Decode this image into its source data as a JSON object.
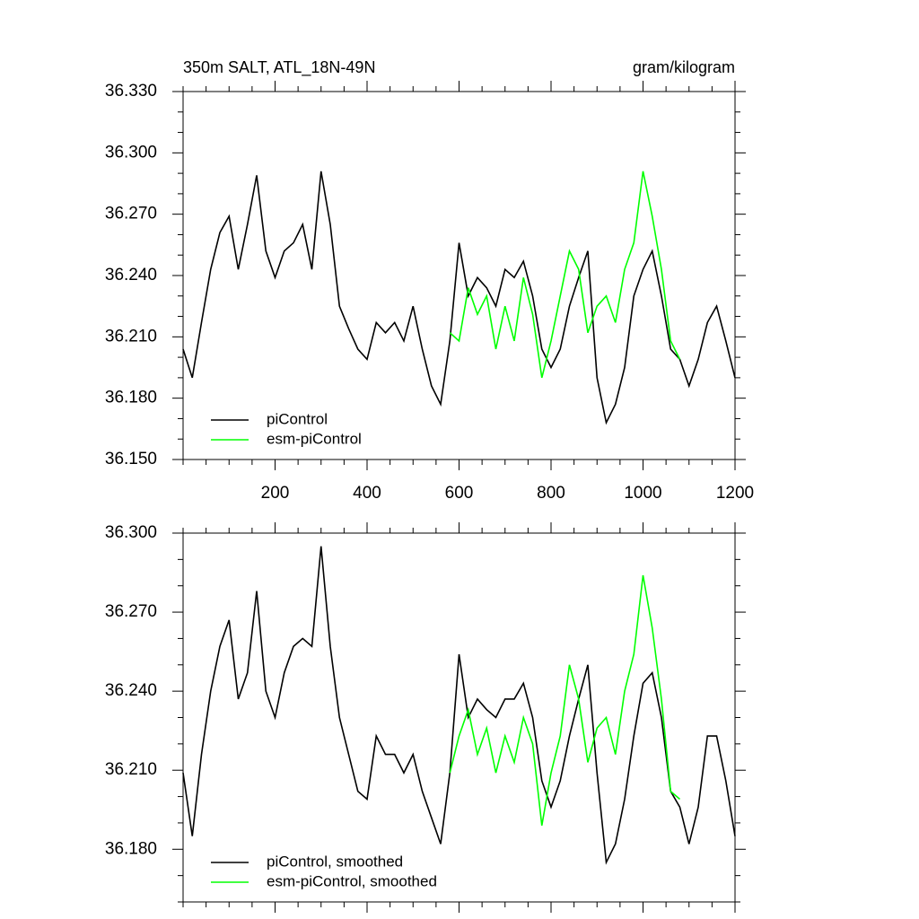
{
  "chart_data": [
    {
      "type": "line",
      "title": "350m SALT, ATL_18N-49N",
      "units": "gram/kilogram",
      "x": [
        0,
        20,
        40,
        60,
        80,
        100,
        120,
        140,
        160,
        180,
        200,
        220,
        240,
        260,
        280,
        300,
        320,
        340,
        360,
        380,
        400,
        420,
        440,
        460,
        480,
        500,
        520,
        540,
        560,
        580,
        600,
        620,
        640,
        660,
        680,
        700,
        720,
        740,
        760,
        780,
        800,
        820,
        840,
        860,
        880,
        900,
        920,
        940,
        960,
        980,
        1000,
        1020,
        1040,
        1060,
        1080,
        1100,
        1120,
        1140,
        1160,
        1180,
        1200
      ],
      "series": [
        {
          "name": "piControl",
          "color": "#000000",
          "values": [
            36.204,
            36.19,
            36.217,
            36.243,
            36.261,
            36.269,
            36.243,
            36.265,
            36.289,
            36.252,
            36.239,
            36.252,
            36.256,
            36.265,
            36.243,
            36.291,
            36.265,
            36.225,
            36.214,
            36.204,
            36.199,
            36.217,
            36.212,
            36.217,
            36.208,
            36.225,
            36.204,
            36.186,
            36.177,
            36.208,
            36.256,
            36.23,
            36.239,
            36.234,
            36.225,
            36.243,
            36.239,
            36.247,
            36.23,
            36.204,
            36.195,
            36.204,
            36.225,
            36.239,
            36.252,
            36.19,
            36.168,
            36.177,
            36.195,
            36.23,
            36.243,
            36.252,
            36.23,
            36.204,
            36.199,
            36.186,
            36.199,
            36.217,
            36.225,
            36.208,
            36.19
          ]
        },
        {
          "name": "esm-piControl",
          "color": "#00ff00",
          "values": [
            null,
            null,
            null,
            null,
            null,
            null,
            null,
            null,
            null,
            null,
            null,
            null,
            null,
            null,
            null,
            null,
            null,
            null,
            null,
            null,
            null,
            null,
            null,
            null,
            null,
            null,
            null,
            null,
            null,
            36.212,
            36.208,
            36.234,
            36.221,
            36.23,
            36.204,
            36.225,
            36.208,
            36.239,
            36.221,
            36.19,
            36.208,
            36.23,
            36.252,
            36.243,
            36.212,
            36.225,
            36.23,
            36.217,
            36.243,
            36.256,
            36.291,
            36.269,
            36.243,
            36.208,
            36.199,
            null,
            null,
            null,
            null,
            null,
            null
          ]
        }
      ],
      "xlim": [
        0,
        1200
      ],
      "xticks": [
        200,
        400,
        600,
        800,
        1000,
        1200
      ],
      "xtick_labels": true,
      "ylim": [
        36.15,
        36.33
      ],
      "yticks": [
        {
          "value": 36.15,
          "label": "36.150"
        },
        {
          "value": 36.18,
          "label": "36.180"
        },
        {
          "value": 36.21,
          "label": "36.210"
        },
        {
          "value": 36.24,
          "label": "36.240"
        },
        {
          "value": 36.27,
          "label": "36.270"
        },
        {
          "value": 36.3,
          "label": "36.300"
        },
        {
          "value": 36.33,
          "label": "36.330"
        }
      ],
      "legend": "bottom left"
    },
    {
      "type": "line",
      "x": [
        0,
        20,
        40,
        60,
        80,
        100,
        120,
        140,
        160,
        180,
        200,
        220,
        240,
        260,
        280,
        300,
        320,
        340,
        360,
        380,
        400,
        420,
        440,
        460,
        480,
        500,
        520,
        540,
        560,
        580,
        600,
        620,
        640,
        660,
        680,
        700,
        720,
        740,
        760,
        780,
        800,
        820,
        840,
        860,
        880,
        900,
        920,
        940,
        960,
        980,
        1000,
        1020,
        1040,
        1060,
        1080,
        1100,
        1120,
        1140,
        1160,
        1180,
        1200
      ],
      "series": [
        {
          "name": "piControl, smoothed",
          "color": "#000000",
          "values": [
            36.209,
            36.185,
            36.216,
            36.24,
            36.257,
            36.267,
            36.237,
            36.247,
            36.278,
            36.24,
            36.23,
            36.247,
            36.257,
            36.26,
            36.257,
            36.295,
            36.257,
            36.23,
            36.216,
            36.202,
            36.199,
            36.223,
            36.216,
            36.216,
            36.209,
            36.216,
            36.202,
            36.192,
            36.182,
            36.209,
            36.254,
            36.23,
            36.237,
            36.233,
            36.23,
            36.237,
            36.237,
            36.243,
            36.23,
            36.206,
            36.196,
            36.206,
            36.223,
            36.237,
            36.25,
            36.209,
            36.175,
            36.182,
            36.199,
            36.223,
            36.243,
            36.247,
            36.23,
            36.202,
            36.196,
            36.182,
            36.196,
            36.223,
            36.223,
            36.206,
            36.185
          ]
        },
        {
          "name": "esm-piControl, smoothed",
          "color": "#00ff00",
          "values": [
            null,
            null,
            null,
            null,
            null,
            null,
            null,
            null,
            null,
            null,
            null,
            null,
            null,
            null,
            null,
            null,
            null,
            null,
            null,
            null,
            null,
            null,
            null,
            null,
            null,
            null,
            null,
            null,
            null,
            36.209,
            36.223,
            36.233,
            36.216,
            36.226,
            36.209,
            36.223,
            36.213,
            36.23,
            36.22,
            36.189,
            36.209,
            36.223,
            36.25,
            36.237,
            36.213,
            36.226,
            36.23,
            36.216,
            36.24,
            36.254,
            36.284,
            36.264,
            36.237,
            36.202,
            36.199,
            null,
            null,
            null,
            null,
            null,
            null
          ]
        }
      ],
      "xlim": [
        0,
        1200
      ],
      "xticks": [
        200,
        400,
        600,
        800,
        1000,
        1200
      ],
      "xtick_labels": false,
      "ylim": [
        36.16,
        36.3
      ],
      "yticks": [
        {
          "value": 36.18,
          "label": "36.180"
        },
        {
          "value": 36.21,
          "label": "36.210"
        },
        {
          "value": 36.24,
          "label": "36.240"
        },
        {
          "value": 36.27,
          "label": "36.270"
        },
        {
          "value": 36.3,
          "label": "36.300"
        }
      ],
      "legend": "bottom left"
    }
  ]
}
